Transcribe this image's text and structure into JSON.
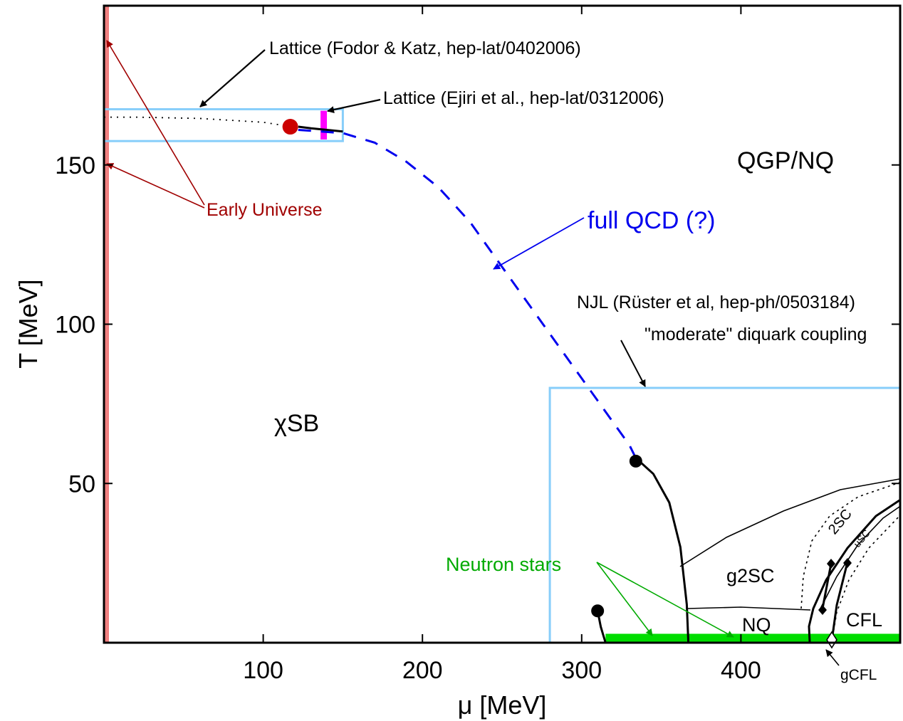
{
  "chart_data": {
    "type": "line",
    "xlabel": "μ [MeV]",
    "ylabel": "T [MeV]",
    "xlim": [
      0,
      500
    ],
    "ylim": [
      0,
      200
    ],
    "xticks": [
      100,
      200,
      300,
      400
    ],
    "yticks": [
      50,
      100,
      150
    ],
    "grid": false,
    "colors": {
      "early_universe": "#f08080",
      "lattice_box": "#87cefa",
      "ejiri": "#ff00ff",
      "critical_point": "#cc0000",
      "full_qcd": "#0000ee",
      "neutron_stars": "#00dd00",
      "early_universe_text": "#a00000",
      "neutron_stars_text": "#00aa00"
    },
    "annotations": {
      "fodor_katz": "Lattice (Fodor & Katz, hep-lat/0402006)",
      "ejiri": "Lattice (Ejiri et al., hep-lat/0312006)",
      "early_universe": "Early Universe",
      "full_qcd": "full QCD (?)",
      "njl_line1": "NJL (Rüster et al, hep-ph/0503184)",
      "njl_line2": "\"moderate\" diquark coupling",
      "neutron_stars": "Neutron stars",
      "gcfl": "gCFL"
    },
    "regions": {
      "qgp": "QGP/NQ",
      "chisb": "χSB",
      "g2sc": "g2SC",
      "nq": "NQ",
      "cfl": "CFL",
      "twosc": "2SC",
      "usc": "uSC"
    },
    "series": [
      {
        "style": "dotted",
        "x": [
          0,
          20,
          40,
          60,
          80,
          100,
          118
        ],
        "y": [
          165,
          165,
          164.8,
          164.6,
          164,
          163.4,
          162
        ]
      },
      {
        "style": "solid",
        "x": [
          122,
          130,
          140,
          150
        ],
        "y": [
          162,
          161.5,
          161,
          160.5
        ]
      },
      {
        "style": "dashed",
        "x": [
          122,
          150,
          170,
          190,
          210,
          230,
          250,
          270,
          290,
          310,
          330,
          334
        ],
        "y": [
          161,
          160,
          157,
          151,
          143,
          132,
          118,
          104,
          90,
          76,
          62,
          58
        ]
      },
      {
        "style": "solid",
        "x": [
          334,
          345,
          355,
          362,
          366,
          367
        ],
        "y": [
          58,
          53,
          44,
          30,
          12,
          0
        ]
      },
      {
        "style": "solid",
        "x": [
          310,
          312,
          315
        ],
        "y": [
          10,
          5,
          0
        ]
      }
    ],
    "points": [
      {
        "x": 117,
        "y": 162
      },
      {
        "x": 334,
        "y": 57
      },
      {
        "x": 310,
        "y": 10
      }
    ]
  }
}
